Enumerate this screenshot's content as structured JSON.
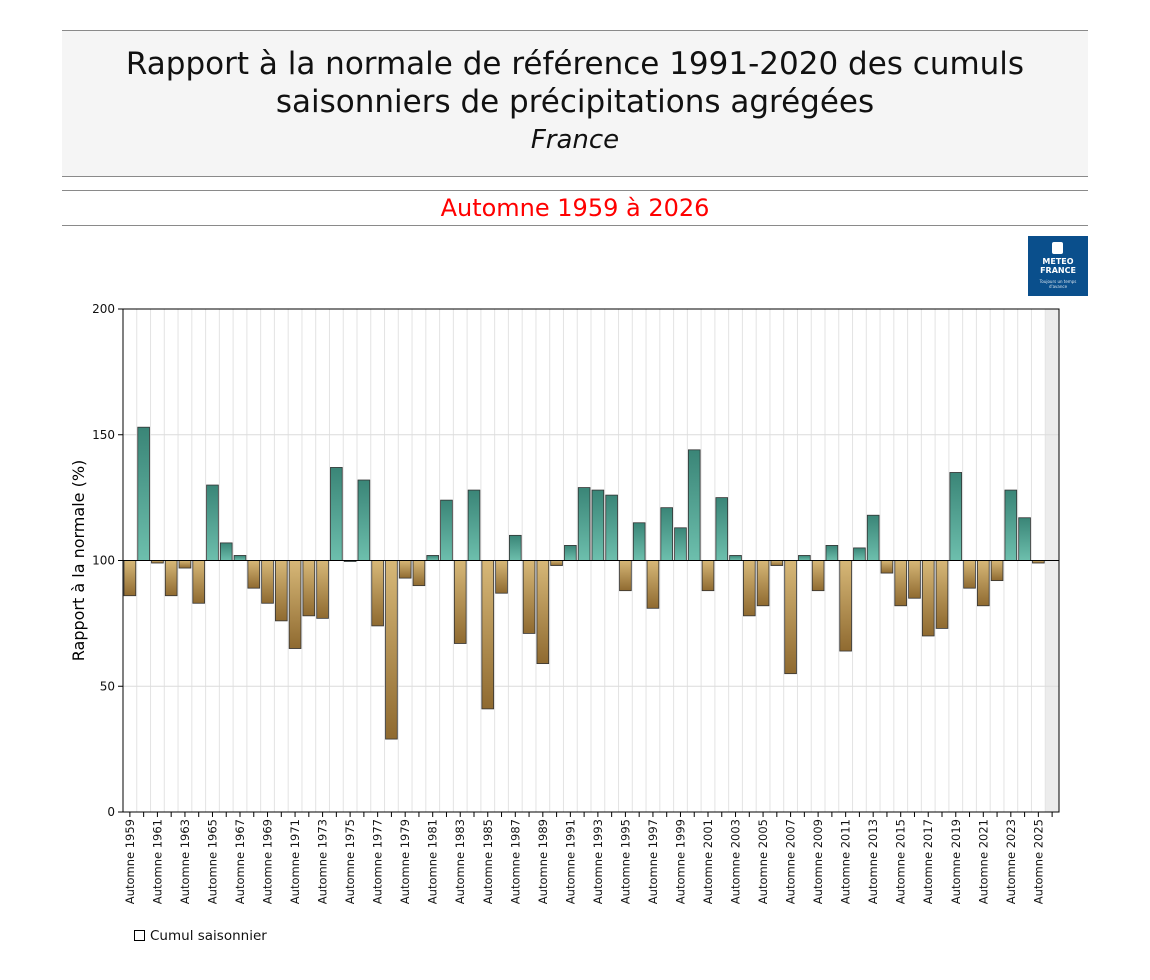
{
  "header": {
    "title_line1": "Rapport à la normale de référence 1991-2020 des cumuls",
    "title_line2": "saisonniers de précipitations agrégées",
    "subtitle": "France",
    "period": "Automne 1959 à 2026"
  },
  "logo": {
    "line1": "METEO",
    "line2": "FRANCE",
    "tagline": "Toujours un temps d'avance"
  },
  "legend": {
    "label": "Cumul saisonnier"
  },
  "colors": {
    "above": "#6dbfad",
    "above_dark": "#3a8577",
    "below": "#d7b878",
    "below_dark": "#8f6a30",
    "period_text": "#ff0000"
  },
  "chart_data": {
    "type": "bar",
    "title": "Rapport à la normale de référence 1991-2020 des cumuls saisonniers de précipitations agrégées",
    "ylabel": "Rapport à la normale (%)",
    "xlabel": "",
    "ylim": [
      0,
      200
    ],
    "yticks": [
      0,
      50,
      100,
      150,
      200
    ],
    "baseline": 100,
    "grid": true,
    "categories": [
      "Automne 1959",
      "Automne 1960",
      "Automne 1961",
      "Automne 1962",
      "Automne 1963",
      "Automne 1964",
      "Automne 1965",
      "Automne 1966",
      "Automne 1967",
      "Automne 1968",
      "Automne 1969",
      "Automne 1970",
      "Automne 1971",
      "Automne 1972",
      "Automne 1973",
      "Automne 1974",
      "Automne 1975",
      "Automne 1976",
      "Automne 1977",
      "Automne 1978",
      "Automne 1979",
      "Automne 1980",
      "Automne 1981",
      "Automne 1982",
      "Automne 1983",
      "Automne 1984",
      "Automne 1985",
      "Automne 1986",
      "Automne 1987",
      "Automne 1988",
      "Automne 1989",
      "Automne 1990",
      "Automne 1991",
      "Automne 1992",
      "Automne 1993",
      "Automne 1994",
      "Automne 1995",
      "Automne 1996",
      "Automne 1997",
      "Automne 1998",
      "Automne 1999",
      "Automne 2000",
      "Automne 2001",
      "Automne 2002",
      "Automne 2003",
      "Automne 2004",
      "Automne 2005",
      "Automne 2006",
      "Automne 2007",
      "Automne 2008",
      "Automne 2009",
      "Automne 2010",
      "Automne 2011",
      "Automne 2012",
      "Automne 2013",
      "Automne 2014",
      "Automne 2015",
      "Automne 2016",
      "Automne 2017",
      "Automne 2018",
      "Automne 2019",
      "Automne 2020",
      "Automne 2021",
      "Automne 2022",
      "Automne 2023",
      "Automne 2024",
      "Automne 2025",
      "Automne 2026"
    ],
    "tick_labels": [
      "Automne 1959",
      "Automne 1961",
      "Automne 1963",
      "Automne 1965",
      "Automne 1967",
      "Automne 1969",
      "Automne 1971",
      "Automne 1973",
      "Automne 1975",
      "Automne 1977",
      "Automne 1979",
      "Automne 1981",
      "Automne 1983",
      "Automne 1985",
      "Automne 1987",
      "Automne 1989",
      "Automne 1991",
      "Automne 1993",
      "Automne 1995",
      "Automne 1997",
      "Automne 1999",
      "Automne 2001",
      "Automne 2003",
      "Automne 2005",
      "Automne 2007",
      "Automne 2009",
      "Automne 2011",
      "Automne 2013",
      "Automne 2015",
      "Automne 2017",
      "Automne 2019",
      "Automne 2021",
      "Automne 2023",
      "Automne 2025"
    ],
    "series": [
      {
        "values": [
          86,
          153,
          99,
          86,
          97,
          83,
          130,
          107,
          102,
          89,
          83,
          76,
          65,
          78,
          77,
          137,
          100,
          132,
          74,
          29,
          93,
          90,
          102,
          124,
          67,
          128,
          41,
          87,
          110,
          71,
          59,
          98,
          106,
          129,
          128,
          126,
          88,
          115,
          81,
          121,
          113,
          144,
          88,
          125,
          102,
          78,
          82,
          98,
          55,
          102,
          88,
          106,
          64,
          105,
          118,
          95,
          82,
          85,
          70,
          73,
          135,
          89,
          82,
          92,
          128,
          117,
          99,
          null
        ]
      }
    ],
    "legend": [
      "Cumul saisonnier"
    ],
    "legend_position": "bottom-left"
  }
}
